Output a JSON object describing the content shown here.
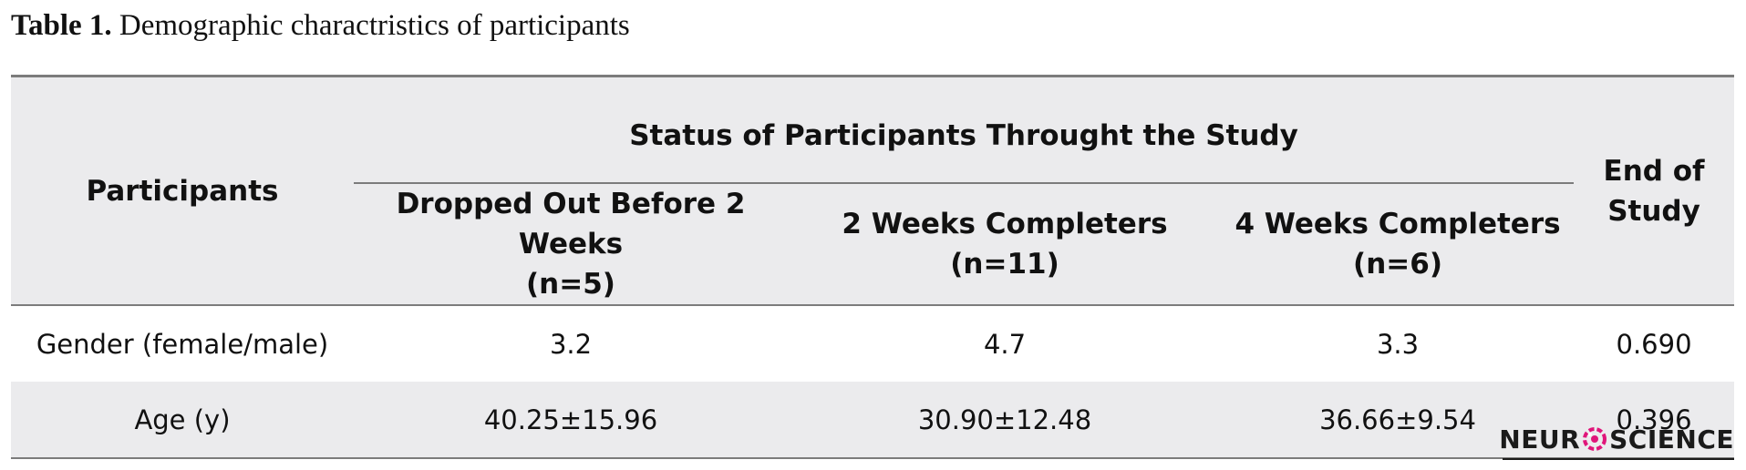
{
  "caption": {
    "label": "Table 1.",
    "text": " Demographic charactristics of participants"
  },
  "table": {
    "row_header": "Participants",
    "group_header": "Status of Participants Throught the Study",
    "end_header": [
      "End of",
      "Study"
    ],
    "columns": [
      {
        "title": "Dropped Out Before 2 Weeks",
        "n": "(n=5)"
      },
      {
        "title": "2 Weeks Completers",
        "n": "(n=11)"
      },
      {
        "title": "4 Weeks Completers",
        "n": "(n=6)"
      }
    ],
    "rows": [
      {
        "label": "Gender (female/male)",
        "values": [
          "3.2",
          "4.7",
          "3.3"
        ],
        "end": "0.690"
      },
      {
        "label": "Age (y)",
        "values": [
          "40.25±15.96",
          "30.90±12.48",
          "36.66±9.54"
        ],
        "end": "0.396"
      }
    ]
  },
  "logo": {
    "left": "NEUR",
    "right": "SCIENCE",
    "icon": "brain-logo-icon",
    "accent_color": "#e0157a"
  }
}
